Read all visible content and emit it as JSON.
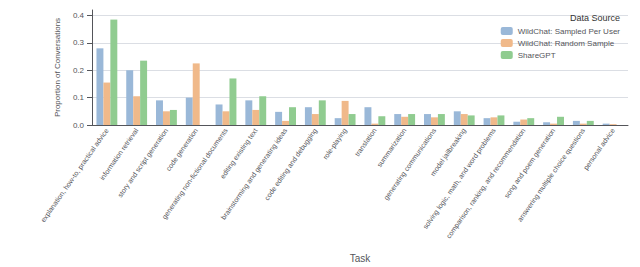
{
  "chart_data": {
    "type": "bar",
    "xlabel": "Task",
    "ylabel": "Proportion of Conversations",
    "categories": [
      "explanation, how-to, practical advice",
      "information retrieval",
      "story and script generation",
      "code generation",
      "generating non-fictional documents",
      "editing existing text",
      "brainstorming and generating ideas",
      "code editing and debugging",
      "role-playing",
      "translation",
      "summarization",
      "generating communications",
      "model jailbreaking",
      "solving logic, math, and word problems",
      "comparison, ranking, and recommendation",
      "song and poem generation",
      "answering multiple choice questions",
      "personal advice"
    ],
    "series": [
      {
        "name": "WildChat: Sampled Per User",
        "color": "#9ab8d8",
        "values": [
          0.28,
          0.2,
          0.09,
          0.1,
          0.075,
          0.09,
          0.048,
          0.065,
          0.025,
          0.065,
          0.04,
          0.04,
          0.05,
          0.025,
          0.012,
          0.01,
          0.015,
          0.005
        ]
      },
      {
        "name": "WildChat: Random Sample",
        "color": "#f0b98a",
        "values": [
          0.155,
          0.105,
          0.05,
          0.225,
          0.05,
          0.055,
          0.015,
          0.04,
          0.088,
          0.005,
          0.03,
          0.028,
          0.04,
          0.028,
          0.02,
          0.005,
          0.005,
          0.003
        ]
      },
      {
        "name": "ShareGPT",
        "color": "#90cc90",
        "values": [
          0.385,
          0.235,
          0.055,
          0.0,
          0.17,
          0.105,
          0.065,
          0.09,
          0.04,
          0.032,
          0.04,
          0.04,
          0.035,
          0.035,
          0.025,
          0.03,
          0.015,
          0.0
        ]
      }
    ],
    "ylim": [
      0,
      0.42
    ],
    "yticks": [
      {
        "value": 0,
        "label": "0.0"
      },
      0.1,
      0.2,
      0.3,
      0.4
    ],
    "grid": true,
    "legend": "upper right",
    "legend_title": "Data Source"
  }
}
